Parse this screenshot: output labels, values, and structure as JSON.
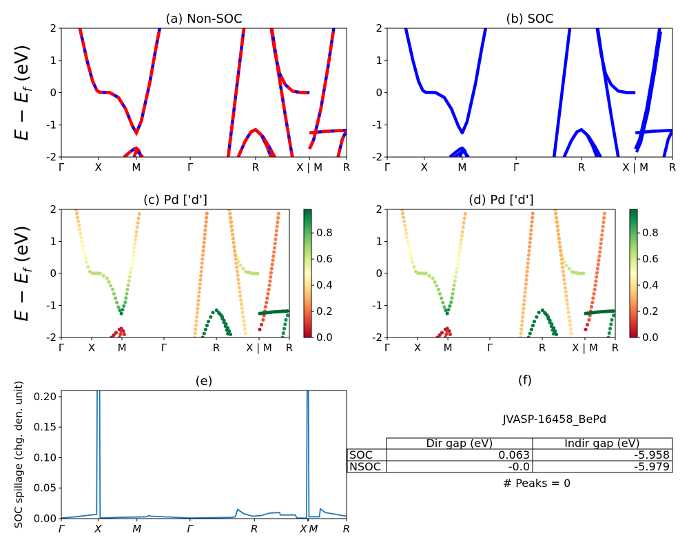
{
  "figure_label": "JVASP-16458_BePd",
  "chart_data": [
    {
      "panel": "a",
      "type": "line",
      "title": "(a) Non-SOC",
      "ylabel": {
        "main": "E − E",
        "sub": "f",
        "unit": " (eV)"
      },
      "ylim": [
        -2,
        2
      ],
      "yticks": [
        -2,
        -1,
        0,
        1,
        2
      ],
      "xtick_labels": [
        "Γ",
        "X",
        "M",
        "Γ",
        "R",
        "X | M",
        "R"
      ],
      "xtick_positions": [
        0,
        0.13,
        0.263,
        0.452,
        0.681,
        0.87,
        1
      ],
      "colors": {
        "solid": "#0000ff",
        "dashed": "#ff0000"
      },
      "bands": [
        {
          "k": [
            0.065,
            0.09,
            0.11,
            0.125,
            0.135,
            0.17,
            0.2,
            0.225,
            0.25,
            0.263,
            0.28,
            0.31,
            0.33,
            0.345
          ],
          "E": [
            2,
            1.0,
            0.35,
            0.06,
            0.01,
            0.0,
            -0.15,
            -0.5,
            -1.05,
            -1.25,
            -0.9,
            0.3,
            1.3,
            2
          ],
          "w": [
            0.3,
            0.45,
            0.55,
            0.65,
            0.65,
            0.65,
            0.65,
            0.7,
            0.8,
            0.95,
            0.8,
            0.5,
            0.35,
            0.3
          ]
        },
        {
          "k": [
            0.22,
            0.24,
            0.255,
            0.263,
            0.272,
            0.28
          ],
          "E": [
            -2,
            -1.85,
            -1.75,
            -1.72,
            -1.8,
            -2
          ],
          "w": [
            0.05,
            0.05,
            0.05,
            0.05,
            0.05,
            0.05
          ]
        },
        {
          "k": [
            0.255,
            0.263,
            0.275,
            0.285
          ],
          "E": [
            -2,
            -1.8,
            -1.9,
            -2
          ],
          "w": [
            0.1,
            0.1,
            0.1,
            0.1
          ]
        },
        {
          "k": [
            0.585,
            0.61,
            0.64
          ],
          "E": [
            -2,
            -0.2,
            2
          ],
          "w": [
            0.35,
            0.3,
            0.25
          ]
        },
        {
          "k": [
            0.62,
            0.645,
            0.665,
            0.681,
            0.7,
            0.72,
            0.735
          ],
          "E": [
            -2,
            -1.5,
            -1.22,
            -1.15,
            -1.3,
            -1.65,
            -2
          ],
          "w": [
            0.95,
            0.95,
            0.95,
            0.95,
            0.95,
            0.95,
            0.95
          ]
        },
        {
          "k": [
            0.681,
            0.705,
            0.73,
            0.748
          ],
          "E": [
            -1.15,
            -1.35,
            -1.7,
            -2
          ],
          "w": [
            0.95,
            0.95,
            0.95,
            0.95
          ]
        },
        {
          "k": [
            0.736,
            0.75,
            0.765,
            0.785,
            0.81,
            0.84,
            0.87
          ],
          "E": [
            2,
            1.2,
            0.6,
            0.25,
            0.05,
            0.0,
            0.0
          ],
          "w": [
            0.3,
            0.4,
            0.55,
            0.6,
            0.65,
            0.65,
            0.65
          ]
        },
        {
          "k": [
            0.738,
            0.76,
            0.785,
            0.81
          ],
          "E": [
            2,
            0.7,
            -0.7,
            -2
          ],
          "w": [
            0.3,
            0.3,
            0.35,
            0.4
          ]
        },
        {
          "k": [
            0.87,
            0.885,
            0.91,
            0.935,
            0.955
          ],
          "E": [
            -1.75,
            -1.45,
            -0.5,
            0.8,
            2
          ],
          "w": [
            0.05,
            0.15,
            0.2,
            0.22,
            0.25
          ]
        },
        {
          "k": [
            0.87,
            0.93,
            1.0
          ],
          "E": [
            -1.25,
            -1.2,
            -1.17
          ],
          "w": [
            0.98,
            0.98,
            0.98
          ]
        },
        {
          "k": [
            0.97,
            0.985,
            1.0
          ],
          "E": [
            -2,
            -1.45,
            -1.17
          ],
          "w": [
            0.9,
            0.9,
            0.9
          ]
        }
      ]
    },
    {
      "panel": "b",
      "type": "line",
      "title": "(b) SOC",
      "ylim": [
        -2,
        2
      ],
      "yticks": [
        -2,
        -1,
        0,
        1,
        2
      ],
      "xtick_labels": [
        "Γ",
        "X",
        "M",
        "Γ",
        "R",
        "X | M",
        "R"
      ],
      "xtick_positions": [
        0,
        0.13,
        0.263,
        0.452,
        0.681,
        0.87,
        1
      ],
      "colors": {
        "solid": "#0000ff"
      },
      "bands_from": "a"
    },
    {
      "panel": "c",
      "type": "scatter",
      "title": "(c)  Pd ['d']",
      "ylabel": {
        "main": "E − E",
        "sub": "f",
        "unit": " (eV)"
      },
      "ylim": [
        -2,
        2
      ],
      "yticks": [
        -2,
        -1,
        0,
        1,
        2
      ],
      "xtick_labels": [
        "Γ",
        "X",
        "M",
        "Γ",
        "R",
        "X | M",
        "R"
      ],
      "xtick_positions": [
        0,
        0.133,
        0.266,
        0.45,
        0.68,
        0.867,
        1
      ],
      "bands_from": "a",
      "color_by": "Pd d weight",
      "colormap": "RdYlGn",
      "colorbar": {
        "range": [
          0,
          0.98
        ],
        "ticks": [
          "0.0",
          "0.2",
          "0.4",
          "0.6",
          "0.8"
        ]
      }
    },
    {
      "panel": "d",
      "type": "scatter",
      "title": "(d) Pd ['d']",
      "ylim": [
        -2,
        2
      ],
      "yticks": [
        -2,
        -1,
        0,
        1,
        2
      ],
      "xtick_labels": [
        "Γ",
        "X",
        "M",
        "Γ",
        "R",
        "X | M",
        "R"
      ],
      "xtick_positions": [
        0,
        0.133,
        0.266,
        0.45,
        0.68,
        0.867,
        1
      ],
      "bands_from": "a",
      "color_by": "Pd d weight",
      "colormap": "RdYlGn",
      "colorbar": {
        "range": [
          0,
          0.98
        ],
        "ticks": [
          "0.0",
          "0.2",
          "0.4",
          "0.6",
          "0.8"
        ]
      }
    },
    {
      "panel": "e",
      "type": "line",
      "title": "(e)",
      "ylabel": "SOC spillage (chg. den. unit)",
      "ylim": [
        0,
        0.21
      ],
      "yticks": [
        "0.00",
        "0.05",
        "0.10",
        "0.15",
        "0.20"
      ],
      "xtick_labels": [
        "Γ",
        "X",
        "M",
        "Γ",
        "R",
        "X",
        "M",
        "R"
      ],
      "xtick_positions": [
        0,
        0.129,
        0.265,
        0.451,
        0.677,
        0.864,
        0.866,
        1
      ],
      "color": "#1f77b4",
      "k": [
        0,
        0.05,
        0.124,
        0.126,
        0.134,
        0.136,
        0.2,
        0.3,
        0.305,
        0.315,
        0.45,
        0.6,
        0.61,
        0.618,
        0.64,
        0.67,
        0.7,
        0.73,
        0.765,
        0.768,
        0.82,
        0.826,
        0.86,
        0.862,
        0.866,
        0.868,
        0.905,
        0.908,
        0.925,
        1
      ],
      "values": [
        0.001,
        0.003,
        0.007,
        0.25,
        0.25,
        0.001,
        0.002,
        0.003,
        0.005,
        0.004,
        0.001,
        0.002,
        0.003,
        0.015,
        0.008,
        0.004,
        0.005,
        0.009,
        0.01,
        0.006,
        0.006,
        0.001,
        0.001,
        0.25,
        0.25,
        0.003,
        0.003,
        0.016,
        0.01,
        0.004
      ]
    },
    {
      "panel": "f",
      "type": "table",
      "title": "(f)",
      "subtitle": "JVASP-16458_BePd",
      "columns": [
        "",
        "Dir gap (eV)",
        "Indir gap (eV)"
      ],
      "rows": [
        {
          "label": "SOC",
          "dir_gap": "0.063",
          "indir_gap": "-5.958"
        },
        {
          "label": "NSOC",
          "dir_gap": "-0.0",
          "indir_gap": "-5.979"
        }
      ],
      "footer": "# Peaks = 0"
    }
  ]
}
